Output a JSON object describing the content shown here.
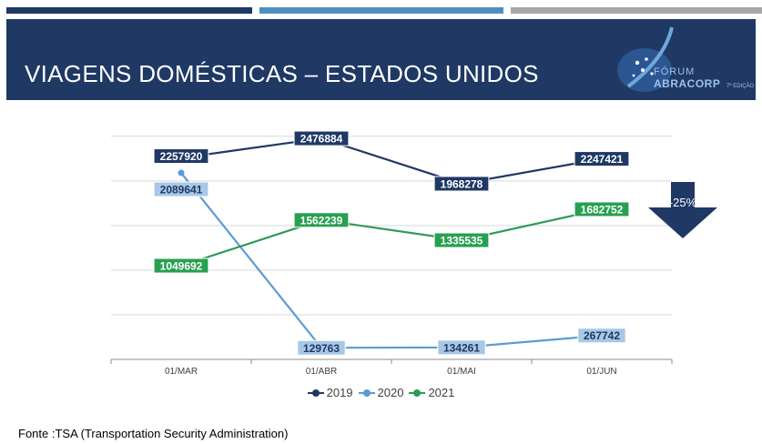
{
  "header": {
    "title": "VIAGENS DOMÉSTICAS – ESTADOS UNIDOS",
    "logo_line1": "FÓRUM",
    "logo_line2": "ABRACORP",
    "logo_edition": "7ª EDIÇÃO"
  },
  "chart_data": {
    "type": "line",
    "title": "",
    "xlabel": "",
    "ylabel": "",
    "categories": [
      "01/MAR",
      "01/ABR",
      "01/MAI",
      "01/JUN"
    ],
    "ylim": [
      0,
      2600000
    ],
    "grid": true,
    "legend_position": "bottom",
    "series": [
      {
        "name": "2019",
        "values": [
          2257920,
          2476884,
          1968278,
          2247421
        ],
        "color": "#1f3864",
        "label_bg": "#1f3864",
        "label_fg": "#ffffff"
      },
      {
        "name": "2020",
        "values": [
          2089641,
          129763,
          134261,
          267742
        ],
        "color": "#5b9bd5",
        "label_bg": "#a9c8e6",
        "label_fg": "#1f3864"
      },
      {
        "name": "2021",
        "values": [
          1049692,
          1562239,
          1335535,
          1682752
        ],
        "color": "#2e9a58",
        "label_bg": "#27a04f",
        "label_fg": "#ffffff"
      }
    ],
    "annotation": {
      "text": "-25%",
      "shape": "down-arrow",
      "color": "#1f3864"
    }
  },
  "source": "Fonte :TSA (Transportation Security Administration)"
}
